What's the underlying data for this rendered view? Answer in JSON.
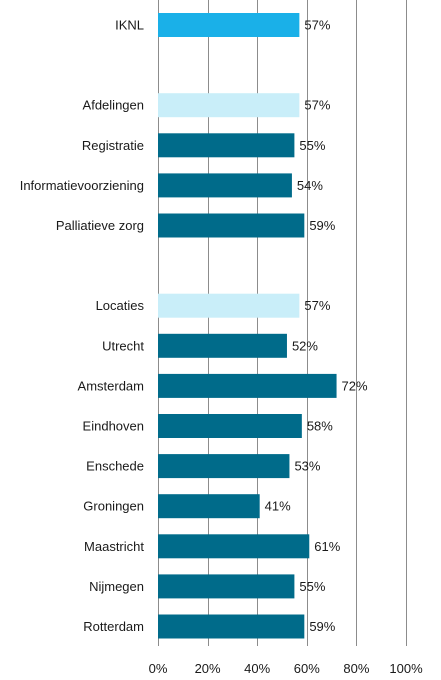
{
  "chart_data": {
    "type": "bar",
    "orientation": "horizontal",
    "categories": [
      "IKNL",
      "",
      "Afdelingen",
      "Registratie",
      "Informatievoorziening",
      "Palliatieve zorg",
      "",
      "Locaties",
      "Utrecht",
      "Amsterdam",
      "Eindhoven",
      "Enschede",
      "Groningen",
      "Maastricht",
      "Nijmegen",
      "Rotterdam"
    ],
    "values": [
      57,
      null,
      57,
      55,
      54,
      59,
      null,
      57,
      52,
      72,
      58,
      53,
      41,
      61,
      55,
      59
    ],
    "value_labels": [
      "57%",
      "",
      "57%",
      "55%",
      "54%",
      "59%",
      "",
      "57%",
      "52%",
      "72%",
      "58%",
      "53%",
      "41%",
      "61%",
      "55%",
      "59%"
    ],
    "bar_colors": [
      "#1ab0e8",
      null,
      "#c9eef9",
      "#006b8a",
      "#006b8a",
      "#006b8a",
      null,
      "#c9eef9",
      "#006b8a",
      "#006b8a",
      "#006b8a",
      "#006b8a",
      "#006b8a",
      "#006b8a",
      "#006b8a",
      "#006b8a"
    ],
    "xlim": [
      0,
      100
    ],
    "x_ticks": [
      0,
      20,
      40,
      60,
      80,
      100
    ],
    "x_tick_labels": [
      "0%",
      "20%",
      "40%",
      "60%",
      "80%",
      "100%"
    ],
    "grid": true,
    "gridline_color": "#8c8c8c",
    "title": "",
    "xlabel": "",
    "ylabel": ""
  }
}
